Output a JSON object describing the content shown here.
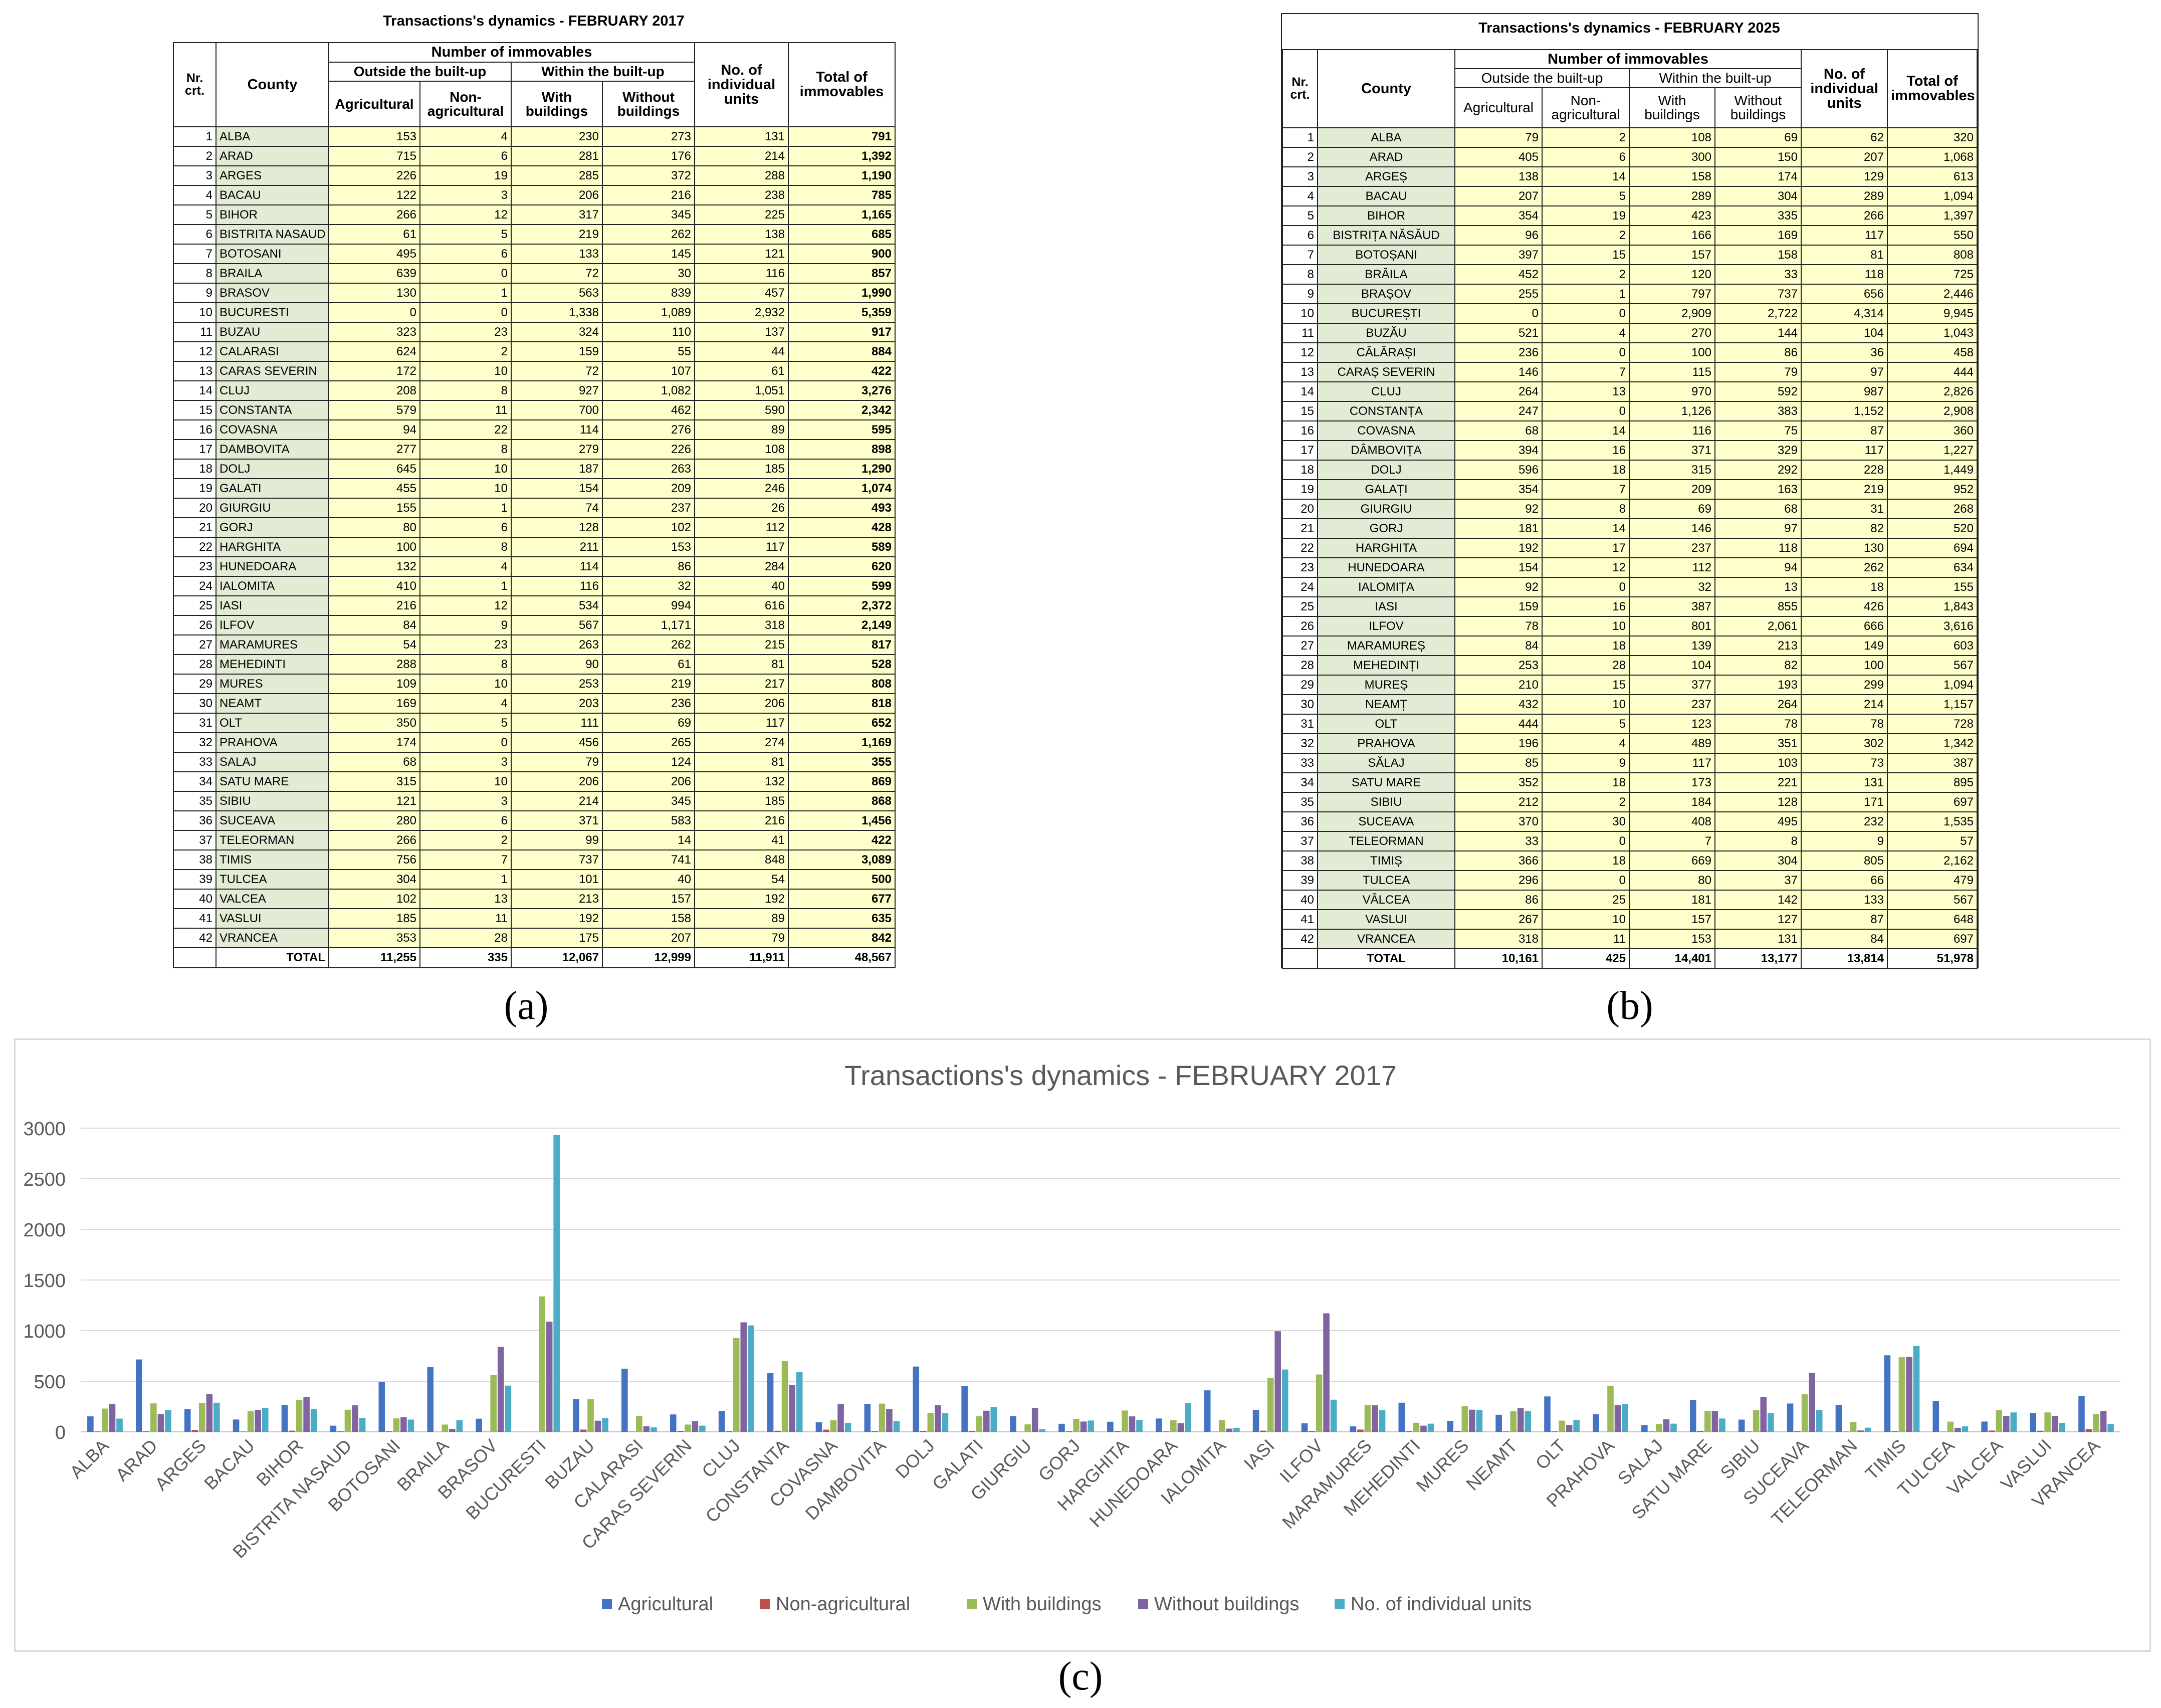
{
  "table_a": {
    "title": "Transactions's dynamics - FEBRUARY 2017",
    "headers": {
      "nr": "Nr. crt.",
      "county": "County",
      "number_of_immovables": "Number of immovables",
      "outside": "Outside the built-up",
      "within": "Within the built-up",
      "agricultural": "Agricultural",
      "non_agricultural": "Non-agricultural",
      "with_buildings": "With buildings",
      "without_buildings": "Without buildings",
      "individual_units": "No. of individual units",
      "total": "Total of immovables"
    },
    "rows": [
      [
        "1",
        "ALBA",
        "153",
        "4",
        "230",
        "273",
        "131",
        "791"
      ],
      [
        "2",
        "ARAD",
        "715",
        "6",
        "281",
        "176",
        "214",
        "1,392"
      ],
      [
        "3",
        "ARGES",
        "226",
        "19",
        "285",
        "372",
        "288",
        "1,190"
      ],
      [
        "4",
        "BACAU",
        "122",
        "3",
        "206",
        "216",
        "238",
        "785"
      ],
      [
        "5",
        "BIHOR",
        "266",
        "12",
        "317",
        "345",
        "225",
        "1,165"
      ],
      [
        "6",
        "BISTRITA NASAUD",
        "61",
        "5",
        "219",
        "262",
        "138",
        "685"
      ],
      [
        "7",
        "BOTOSANI",
        "495",
        "6",
        "133",
        "145",
        "121",
        "900"
      ],
      [
        "8",
        "BRAILA",
        "639",
        "0",
        "72",
        "30",
        "116",
        "857"
      ],
      [
        "9",
        "BRASOV",
        "130",
        "1",
        "563",
        "839",
        "457",
        "1,990"
      ],
      [
        "10",
        "BUCURESTI",
        "0",
        "0",
        "1,338",
        "1,089",
        "2,932",
        "5,359"
      ],
      [
        "11",
        "BUZAU",
        "323",
        "23",
        "324",
        "110",
        "137",
        "917"
      ],
      [
        "12",
        "CALARASI",
        "624",
        "2",
        "159",
        "55",
        "44",
        "884"
      ],
      [
        "13",
        "CARAS SEVERIN",
        "172",
        "10",
        "72",
        "107",
        "61",
        "422"
      ],
      [
        "14",
        "CLUJ",
        "208",
        "8",
        "927",
        "1,082",
        "1,051",
        "3,276"
      ],
      [
        "15",
        "CONSTANTA",
        "579",
        "11",
        "700",
        "462",
        "590",
        "2,342"
      ],
      [
        "16",
        "COVASNA",
        "94",
        "22",
        "114",
        "276",
        "89",
        "595"
      ],
      [
        "17",
        "DAMBOVITA",
        "277",
        "8",
        "279",
        "226",
        "108",
        "898"
      ],
      [
        "18",
        "DOLJ",
        "645",
        "10",
        "187",
        "263",
        "185",
        "1,290"
      ],
      [
        "19",
        "GALATI",
        "455",
        "10",
        "154",
        "209",
        "246",
        "1,074"
      ],
      [
        "20",
        "GIURGIU",
        "155",
        "1",
        "74",
        "237",
        "26",
        "493"
      ],
      [
        "21",
        "GORJ",
        "80",
        "6",
        "128",
        "102",
        "112",
        "428"
      ],
      [
        "22",
        "HARGHITA",
        "100",
        "8",
        "211",
        "153",
        "117",
        "589"
      ],
      [
        "23",
        "HUNEDOARA",
        "132",
        "4",
        "114",
        "86",
        "284",
        "620"
      ],
      [
        "24",
        "IALOMITA",
        "410",
        "1",
        "116",
        "32",
        "40",
        "599"
      ],
      [
        "25",
        "IASI",
        "216",
        "12",
        "534",
        "994",
        "616",
        "2,372"
      ],
      [
        "26",
        "ILFOV",
        "84",
        "9",
        "567",
        "1,171",
        "318",
        "2,149"
      ],
      [
        "27",
        "MARAMURES",
        "54",
        "23",
        "263",
        "262",
        "215",
        "817"
      ],
      [
        "28",
        "MEHEDINTI",
        "288",
        "8",
        "90",
        "61",
        "81",
        "528"
      ],
      [
        "29",
        "MURES",
        "109",
        "10",
        "253",
        "219",
        "217",
        "808"
      ],
      [
        "30",
        "NEAMT",
        "169",
        "4",
        "203",
        "236",
        "206",
        "818"
      ],
      [
        "31",
        "OLT",
        "350",
        "5",
        "111",
        "69",
        "117",
        "652"
      ],
      [
        "32",
        "PRAHOVA",
        "174",
        "0",
        "456",
        "265",
        "274",
        "1,169"
      ],
      [
        "33",
        "SALAJ",
        "68",
        "3",
        "79",
        "124",
        "81",
        "355"
      ],
      [
        "34",
        "SATU MARE",
        "315",
        "10",
        "206",
        "206",
        "132",
        "869"
      ],
      [
        "35",
        "SIBIU",
        "121",
        "3",
        "214",
        "345",
        "185",
        "868"
      ],
      [
        "36",
        "SUCEAVA",
        "280",
        "6",
        "371",
        "583",
        "216",
        "1,456"
      ],
      [
        "37",
        "TELEORMAN",
        "266",
        "2",
        "99",
        "14",
        "41",
        "422"
      ],
      [
        "38",
        "TIMIS",
        "756",
        "7",
        "737",
        "741",
        "848",
        "3,089"
      ],
      [
        "39",
        "TULCEA",
        "304",
        "1",
        "101",
        "40",
        "54",
        "500"
      ],
      [
        "40",
        "VALCEA",
        "102",
        "13",
        "213",
        "157",
        "192",
        "677"
      ],
      [
        "41",
        "VASLUI",
        "185",
        "11",
        "192",
        "158",
        "89",
        "635"
      ],
      [
        "42",
        "VRANCEA",
        "353",
        "28",
        "175",
        "207",
        "79",
        "842"
      ]
    ],
    "total_row": [
      "",
      "TOTAL",
      "11,255",
      "335",
      "12,067",
      "12,999",
      "11,911",
      "48,567"
    ]
  },
  "table_b": {
    "title": "Transactions's dynamics - FEBRUARY 2025",
    "headers": {
      "nr": "Nr. crt.",
      "county": "County",
      "number_of_immovables": "Number of immovables",
      "outside": "Outside the built-up",
      "within": "Within the built-up",
      "agricultural": "Agricultural",
      "non_agricultural": "Non-agricultural",
      "with_buildings": "With buildings",
      "without_buildings": "Without buildings",
      "individual_units": "No. of individual units",
      "total": "Total of immovables"
    },
    "rows": [
      [
        "1",
        "ALBA",
        "79",
        "2",
        "108",
        "69",
        "62",
        "320"
      ],
      [
        "2",
        "ARAD",
        "405",
        "6",
        "300",
        "150",
        "207",
        "1,068"
      ],
      [
        "3",
        "ARGEȘ",
        "138",
        "14",
        "158",
        "174",
        "129",
        "613"
      ],
      [
        "4",
        "BACAU",
        "207",
        "5",
        "289",
        "304",
        "289",
        "1,094"
      ],
      [
        "5",
        "BIHOR",
        "354",
        "19",
        "423",
        "335",
        "266",
        "1,397"
      ],
      [
        "6",
        "BISTRIȚA NĂSĂUD",
        "96",
        "2",
        "166",
        "169",
        "117",
        "550"
      ],
      [
        "7",
        "BOTOȘANI",
        "397",
        "15",
        "157",
        "158",
        "81",
        "808"
      ],
      [
        "8",
        "BRĂILA",
        "452",
        "2",
        "120",
        "33",
        "118",
        "725"
      ],
      [
        "9",
        "BRAȘOV",
        "255",
        "1",
        "797",
        "737",
        "656",
        "2,446"
      ],
      [
        "10",
        "BUCUREȘTI",
        "0",
        "0",
        "2,909",
        "2,722",
        "4,314",
        "9,945"
      ],
      [
        "11",
        "BUZĂU",
        "521",
        "4",
        "270",
        "144",
        "104",
        "1,043"
      ],
      [
        "12",
        "CĂLĂRAȘI",
        "236",
        "0",
        "100",
        "86",
        "36",
        "458"
      ],
      [
        "13",
        "CARAȘ SEVERIN",
        "146",
        "7",
        "115",
        "79",
        "97",
        "444"
      ],
      [
        "14",
        "CLUJ",
        "264",
        "13",
        "970",
        "592",
        "987",
        "2,826"
      ],
      [
        "15",
        "CONSTANȚA",
        "247",
        "0",
        "1,126",
        "383",
        "1,152",
        "2,908"
      ],
      [
        "16",
        "COVASNA",
        "68",
        "14",
        "116",
        "75",
        "87",
        "360"
      ],
      [
        "17",
        "DÂMBOVIȚA",
        "394",
        "16",
        "371",
        "329",
        "117",
        "1,227"
      ],
      [
        "18",
        "DOLJ",
        "596",
        "18",
        "315",
        "292",
        "228",
        "1,449"
      ],
      [
        "19",
        "GALAȚI",
        "354",
        "7",
        "209",
        "163",
        "219",
        "952"
      ],
      [
        "20",
        "GIURGIU",
        "92",
        "8",
        "69",
        "68",
        "31",
        "268"
      ],
      [
        "21",
        "GORJ",
        "181",
        "14",
        "146",
        "97",
        "82",
        "520"
      ],
      [
        "22",
        "HARGHITA",
        "192",
        "17",
        "237",
        "118",
        "130",
        "694"
      ],
      [
        "23",
        "HUNEDOARA",
        "154",
        "12",
        "112",
        "94",
        "262",
        "634"
      ],
      [
        "24",
        "IALOMIȚA",
        "92",
        "0",
        "32",
        "13",
        "18",
        "155"
      ],
      [
        "25",
        "IASI",
        "159",
        "16",
        "387",
        "855",
        "426",
        "1,843"
      ],
      [
        "26",
        "ILFOV",
        "78",
        "10",
        "801",
        "2,061",
        "666",
        "3,616"
      ],
      [
        "27",
        "MARAMUREȘ",
        "84",
        "18",
        "139",
        "213",
        "149",
        "603"
      ],
      [
        "28",
        "MEHEDINȚI",
        "253",
        "28",
        "104",
        "82",
        "100",
        "567"
      ],
      [
        "29",
        "MUREȘ",
        "210",
        "15",
        "377",
        "193",
        "299",
        "1,094"
      ],
      [
        "30",
        "NEAMȚ",
        "432",
        "10",
        "237",
        "264",
        "214",
        "1,157"
      ],
      [
        "31",
        "OLT",
        "444",
        "5",
        "123",
        "78",
        "78",
        "728"
      ],
      [
        "32",
        "PRAHOVA",
        "196",
        "4",
        "489",
        "351",
        "302",
        "1,342"
      ],
      [
        "33",
        "SĂLAJ",
        "85",
        "9",
        "117",
        "103",
        "73",
        "387"
      ],
      [
        "34",
        "SATU MARE",
        "352",
        "18",
        "173",
        "221",
        "131",
        "895"
      ],
      [
        "35",
        "SIBIU",
        "212",
        "2",
        "184",
        "128",
        "171",
        "697"
      ],
      [
        "36",
        "SUCEAVA",
        "370",
        "30",
        "408",
        "495",
        "232",
        "1,535"
      ],
      [
        "37",
        "TELEORMAN",
        "33",
        "0",
        "7",
        "8",
        "9",
        "57"
      ],
      [
        "38",
        "TIMIȘ",
        "366",
        "18",
        "669",
        "304",
        "805",
        "2,162"
      ],
      [
        "39",
        "TULCEA",
        "296",
        "0",
        "80",
        "37",
        "66",
        "479"
      ],
      [
        "40",
        "VÂLCEA",
        "86",
        "25",
        "181",
        "142",
        "133",
        "567"
      ],
      [
        "41",
        "VASLUI",
        "267",
        "10",
        "157",
        "127",
        "87",
        "648"
      ],
      [
        "42",
        "VRANCEA",
        "318",
        "11",
        "153",
        "131",
        "84",
        "697"
      ]
    ],
    "total_row": [
      "",
      "TOTAL",
      "10,161",
      "425",
      "14,401",
      "13,177",
      "13,814",
      "51,978"
    ]
  },
  "labels": {
    "a": "(a)",
    "b": "(b)",
    "c": "(c)"
  },
  "chart_data": {
    "type": "bar",
    "title": "Transactions's dynamics - FEBRUARY 2017",
    "xlabel": "",
    "ylabel": "",
    "ylim": [
      0,
      3000
    ],
    "yticks": [
      0,
      500,
      1000,
      1500,
      2000,
      2500,
      3000
    ],
    "grid": true,
    "legend_position": "bottom",
    "categories": [
      "ALBA",
      "ARAD",
      "ARGES",
      "BACAU",
      "BIHOR",
      "BISTRITA NASAUD",
      "BOTOSANI",
      "BRAILA",
      "BRASOV",
      "BUCURESTI",
      "BUZAU",
      "CALARASI",
      "CARAS SEVERIN",
      "CLUJ",
      "CONSTANTA",
      "COVASNA",
      "DAMBOVITA",
      "DOLJ",
      "GALATI",
      "GIURGIU",
      "GORJ",
      "HARGHITA",
      "HUNEDOARA",
      "IALOMITA",
      "IASI",
      "ILFOV",
      "MARAMURES",
      "MEHEDINTI",
      "MURES",
      "NEAMT",
      "OLT",
      "PRAHOVA",
      "SALAJ",
      "SATU MARE",
      "SIBIU",
      "SUCEAVA",
      "TELEORMAN",
      "TIMIS",
      "TULCEA",
      "VALCEA",
      "VASLUI",
      "VRANCEA"
    ],
    "series": [
      {
        "name": "Agricultural",
        "color": "#4472c4",
        "values": [
          153,
          715,
          226,
          122,
          266,
          61,
          495,
          639,
          130,
          0,
          323,
          624,
          172,
          208,
          579,
          94,
          277,
          645,
          455,
          155,
          80,
          100,
          132,
          410,
          216,
          84,
          54,
          288,
          109,
          169,
          350,
          174,
          68,
          315,
          121,
          280,
          266,
          756,
          304,
          102,
          185,
          353
        ]
      },
      {
        "name": "Non-agricultural",
        "color": "#c0504d",
        "values": [
          4,
          6,
          19,
          3,
          12,
          5,
          6,
          0,
          1,
          0,
          23,
          2,
          10,
          8,
          11,
          22,
          8,
          10,
          10,
          1,
          6,
          8,
          4,
          1,
          12,
          9,
          23,
          8,
          10,
          4,
          5,
          0,
          3,
          10,
          3,
          6,
          2,
          7,
          1,
          13,
          11,
          28
        ]
      },
      {
        "name": "With buildings",
        "color": "#9bbb59",
        "values": [
          230,
          281,
          285,
          206,
          317,
          219,
          133,
          72,
          563,
          1338,
          324,
          159,
          72,
          927,
          700,
          114,
          279,
          187,
          154,
          74,
          128,
          211,
          114,
          116,
          534,
          567,
          263,
          90,
          253,
          203,
          111,
          456,
          79,
          206,
          214,
          371,
          99,
          737,
          101,
          213,
          192,
          175
        ]
      },
      {
        "name": "Without buildings",
        "color": "#8064a2",
        "values": [
          273,
          176,
          372,
          216,
          345,
          262,
          145,
          30,
          839,
          1089,
          110,
          55,
          107,
          1082,
          462,
          276,
          226,
          263,
          209,
          237,
          102,
          153,
          86,
          32,
          994,
          1171,
          262,
          61,
          219,
          236,
          69,
          265,
          124,
          206,
          345,
          583,
          14,
          741,
          40,
          157,
          158,
          207
        ]
      },
      {
        "name": "No. of individual units",
        "color": "#4bacc6",
        "values": [
          131,
          214,
          288,
          238,
          225,
          138,
          121,
          116,
          457,
          2932,
          137,
          44,
          61,
          1051,
          590,
          89,
          108,
          185,
          246,
          26,
          112,
          117,
          284,
          40,
          616,
          318,
          215,
          81,
          217,
          206,
          117,
          274,
          81,
          132,
          185,
          216,
          41,
          848,
          54,
          192,
          89,
          79
        ]
      }
    ]
  }
}
